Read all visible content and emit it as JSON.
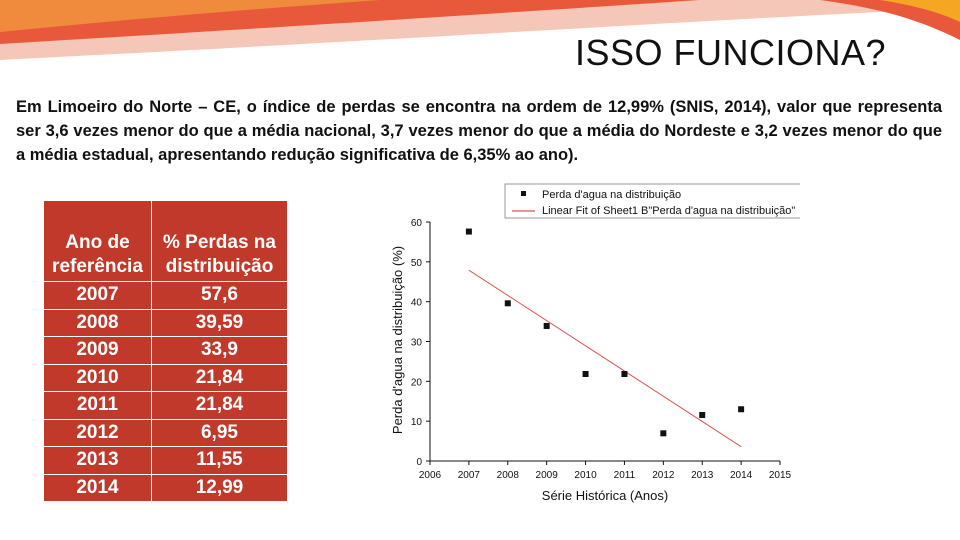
{
  "slide": {
    "title": "ISSO FUNCIONA?",
    "body": "Em Limoeiro do Norte – CE, o índice de perdas se encontra na ordem de 12,99% (SNIS, 2014), valor que representa ser 3,6 vezes menor do que a média nacional, 3,7 vezes menor do que a média do Nordeste e 3,2 vezes menor do que a média estadual, apresentando redução significativa de 6,35% ao ano).",
    "accent_color": "#c0392b"
  },
  "table": {
    "headers": [
      "Ano de referência",
      "% Perdas na distribuição"
    ],
    "rows": [
      [
        "2007",
        "57,6"
      ],
      [
        "2008",
        "39,59"
      ],
      [
        "2009",
        "33,9"
      ],
      [
        "2010",
        "21,84"
      ],
      [
        "2011",
        "21,84"
      ],
      [
        "2012",
        "6,95"
      ],
      [
        "2013",
        "11,55"
      ],
      [
        "2014",
        "12,99"
      ]
    ]
  },
  "chart_data": {
    "type": "scatter",
    "title": "",
    "xlabel": "Série Histórica (Anos)",
    "ylabel": "Perda d'agua na distribuição (%)",
    "xlim": [
      2006,
      2015
    ],
    "ylim": [
      0,
      60
    ],
    "xticks": [
      "2006",
      "2007",
      "2008",
      "2009",
      "2010",
      "2011",
      "2012",
      "2013",
      "2014",
      "2015"
    ],
    "yticks": [
      "0",
      "10",
      "20",
      "30",
      "40",
      "50",
      "60"
    ],
    "legend_position": "top",
    "series": [
      {
        "name": "Perda d'agua na distribuição",
        "marker": "square",
        "color": "#111111",
        "x": [
          2007,
          2008,
          2009,
          2010,
          2011,
          2012,
          2013,
          2014
        ],
        "y": [
          57.6,
          39.59,
          33.9,
          21.84,
          21.84,
          6.95,
          11.55,
          12.99
        ]
      },
      {
        "name": "Linear Fit of Sheet1 B\"Perda d'agua na distribuição\"",
        "type": "line",
        "color": "#d9534f",
        "x": [
          2007,
          2014
        ],
        "y": [
          47.9,
          3.6
        ]
      }
    ]
  }
}
